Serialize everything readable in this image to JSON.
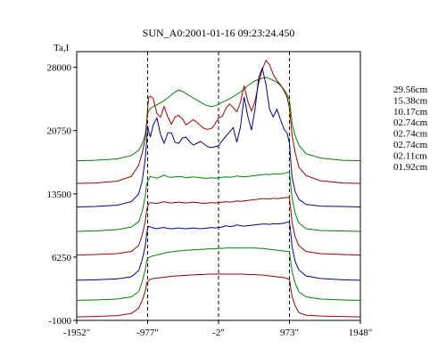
{
  "chart_data": {
    "type": "line",
    "title": "SUN_A0:2001-01-16 09:23:24.450",
    "ylabel": "Ta,I",
    "xlabel": "",
    "xlim": [
      -1952,
      1948
    ],
    "ylim": [
      -1000,
      29800
    ],
    "x_ticks": [
      -1952,
      -977,
      -2,
      973,
      1948
    ],
    "x_tick_labels": [
      "-1952\"",
      "-977\"",
      "-2\"",
      "973\"",
      "1948\""
    ],
    "y_ticks": [
      -1000,
      6250,
      13500,
      20750,
      28000
    ],
    "y_tick_labels": [
      "-1000",
      "6250",
      "13500",
      "20750",
      "28000"
    ],
    "vlines": [
      -977,
      -2,
      973
    ],
    "grid": false,
    "legend_position": "right",
    "series_x": [
      -1952,
      -1700,
      -1400,
      -1200,
      -1100,
      -1050,
      -1010,
      -990,
      -977,
      -960,
      -940,
      -900,
      -850,
      -800,
      -750,
      -700,
      -650,
      -600,
      -550,
      -500,
      -450,
      -400,
      -350,
      -300,
      -250,
      -200,
      -150,
      -100,
      -50,
      -2,
      50,
      100,
      150,
      200,
      250,
      300,
      350,
      400,
      450,
      500,
      550,
      600,
      650,
      700,
      750,
      800,
      850,
      900,
      940,
      973,
      990,
      1010,
      1050,
      1100,
      1200,
      1400,
      1700,
      1948
    ],
    "series": [
      {
        "name": "29.56cm",
        "color": "#008000",
        "values": [
          17300,
          17350,
          17500,
          17900,
          18500,
          19200,
          20300,
          21600,
          22600,
          23100,
          23300,
          23500,
          23700,
          23950,
          24200,
          24500,
          24850,
          25150,
          25400,
          25250,
          25000,
          24750,
          24500,
          24250,
          24000,
          23750,
          23600,
          23500,
          23600,
          23750,
          24000,
          24200,
          24400,
          24650,
          24900,
          25200,
          25500,
          25900,
          26200,
          26450,
          26600,
          26750,
          26850,
          26700,
          26500,
          26300,
          25900,
          25450,
          24900,
          24200,
          23100,
          21600,
          20200,
          19100,
          18100,
          17600,
          17350,
          17300
        ]
      },
      {
        "name": "15.38cm",
        "color": "#990000",
        "values": [
          14700,
          14750,
          14950,
          15500,
          16800,
          18200,
          19800,
          21500,
          23400,
          24600,
          24700,
          24400,
          22700,
          22300,
          23500,
          22300,
          21500,
          22300,
          22500,
          22100,
          21400,
          21700,
          22000,
          21700,
          21300,
          21000,
          20900,
          21000,
          21500,
          22200,
          22400,
          23300,
          23800,
          23400,
          22900,
          24000,
          25900,
          24100,
          23000,
          24100,
          26200,
          27800,
          28800,
          28300,
          27200,
          26500,
          26000,
          25300,
          24600,
          23300,
          21800,
          20200,
          18300,
          16600,
          15600,
          15000,
          14750,
          14700
        ]
      },
      {
        "name": "10.17cm",
        "color": "#00008B",
        "values": [
          12000,
          12050,
          12200,
          12600,
          13500,
          15000,
          17500,
          19500,
          21300,
          20600,
          20000,
          21400,
          22200,
          20300,
          19300,
          20500,
          20500,
          19400,
          19300,
          19900,
          20000,
          19500,
          19100,
          19300,
          19500,
          19200,
          18900,
          18800,
          18900,
          19000,
          19600,
          20100,
          20600,
          21100,
          19400,
          21200,
          24600,
          22400,
          20800,
          23200,
          26800,
          27900,
          26000,
          23200,
          22300,
          23200,
          22000,
          20900,
          20500,
          19300,
          17300,
          15400,
          13800,
          12900,
          12300,
          12100,
          12050,
          12000
        ]
      },
      {
        "name": "02.74cm",
        "color": "#008000",
        "values": [
          9200,
          9250,
          9400,
          9700,
          10300,
          11500,
          13200,
          14600,
          14900,
          15200,
          15500,
          15400,
          15300,
          15450,
          15650,
          15450,
          15400,
          15450,
          15500,
          15450,
          15350,
          15400,
          15450,
          15400,
          15350,
          15300,
          15300,
          15350,
          15300,
          15350,
          15400,
          15450,
          15400,
          15450,
          15550,
          15500,
          15450,
          15500,
          15550,
          15600,
          15650,
          15700,
          15750,
          15700,
          15800,
          15750,
          15800,
          15850,
          15950,
          16000,
          14500,
          13000,
          11300,
          10200,
          9500,
          9300,
          9250,
          9200
        ]
      },
      {
        "name": "02.74cm",
        "color": "#990000",
        "values": [
          6500,
          6550,
          6650,
          6900,
          7600,
          8800,
          10300,
          11600,
          12000,
          12400,
          12500,
          12450,
          12400,
          12500,
          12600,
          12500,
          12450,
          12500,
          12550,
          12500,
          12450,
          12500,
          12550,
          12500,
          12450,
          12400,
          12450,
          12500,
          12450,
          12500,
          12550,
          12600,
          12550,
          12600,
          12700,
          12650,
          12700,
          12750,
          12800,
          12850,
          12900,
          12950,
          12950,
          12900,
          13000,
          12950,
          13000,
          13050,
          13100,
          13100,
          11700,
          10200,
          8600,
          7600,
          6900,
          6650,
          6550,
          6500
        ]
      },
      {
        "name": "02.74cm",
        "color": "#00008B",
        "values": [
          3600,
          3650,
          3750,
          4000,
          4700,
          6000,
          7500,
          8900,
          9600,
          9800,
          9700,
          9600,
          9500,
          9600,
          9650,
          9550,
          9500,
          9550,
          9600,
          9550,
          9500,
          9550,
          9600,
          9550,
          9500,
          9550,
          9600,
          9650,
          9600,
          9650,
          9700,
          9850,
          9750,
          9800,
          9950,
          9850,
          9800,
          9850,
          9900,
          9950,
          10000,
          10050,
          10050,
          10000,
          10100,
          10050,
          10100,
          10150,
          10250,
          10300,
          9000,
          7400,
          5800,
          4800,
          4100,
          3800,
          3650,
          3600
        ]
      },
      {
        "name": "02.11cm",
        "color": "#008000",
        "values": [
          1300,
          1350,
          1450,
          1700,
          2300,
          3500,
          4800,
          5800,
          6100,
          6200,
          6300,
          6400,
          6500,
          6600,
          6700,
          6800,
          6850,
          6900,
          6950,
          7000,
          7050,
          7050,
          7100,
          7100,
          7150,
          7150,
          7200,
          7200,
          7200,
          7250,
          7250,
          7300,
          7300,
          7300,
          7300,
          7300,
          7300,
          7300,
          7300,
          7300,
          7250,
          7250,
          7200,
          7150,
          7100,
          7050,
          7000,
          6950,
          6900,
          6900,
          5700,
          4600,
          3300,
          2300,
          1700,
          1450,
          1350,
          1300
        ]
      },
      {
        "name": "01.92cm",
        "color": "#990000",
        "values": [
          -600,
          -550,
          -450,
          -200,
          400,
          1300,
          2300,
          3300,
          3400,
          3600,
          3700,
          3800,
          3850,
          3900,
          3950,
          4000,
          4050,
          4100,
          4100,
          4150,
          4150,
          4200,
          4200,
          4250,
          4250,
          4250,
          4300,
          4300,
          4300,
          4300,
          4300,
          4300,
          4300,
          4300,
          4300,
          4300,
          4300,
          4250,
          4250,
          4250,
          4200,
          4200,
          4150,
          4100,
          4050,
          4000,
          3950,
          3900,
          3800,
          3700,
          2700,
          1700,
          700,
          -100,
          -400,
          -500,
          -550,
          -600
        ]
      }
    ]
  }
}
